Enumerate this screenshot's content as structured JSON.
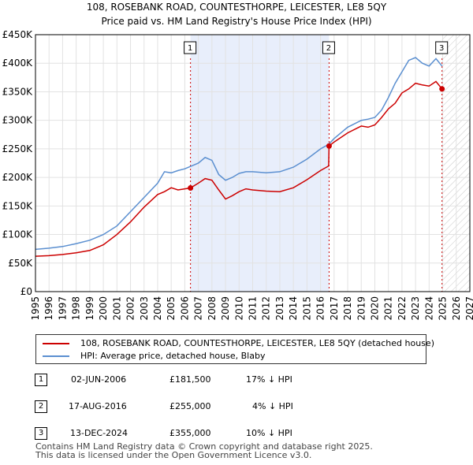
{
  "title": "108, ROSEBANK ROAD, COUNTESTHORPE, LEICESTER, LE8 5QY",
  "subtitle": "Price paid vs. HM Land Registry's House Price Index (HPI)",
  "chart_data": {
    "type": "line",
    "x_range": [
      1995,
      2027
    ],
    "ylim": [
      0,
      450000
    ],
    "x_ticks": [
      "1995",
      "1996",
      "1997",
      "1998",
      "1999",
      "2000",
      "2001",
      "2002",
      "2003",
      "2004",
      "2005",
      "2006",
      "2007",
      "2008",
      "2009",
      "2010",
      "2011",
      "2012",
      "2013",
      "2014",
      "2015",
      "2016",
      "2017",
      "2018",
      "2019",
      "2020",
      "2021",
      "2022",
      "2023",
      "2024",
      "2025",
      "2026",
      "2027"
    ],
    "y_ticks": [
      {
        "value": 0,
        "label": "£0"
      },
      {
        "value": 50000,
        "label": "£50K"
      },
      {
        "value": 100000,
        "label": "£100K"
      },
      {
        "value": 150000,
        "label": "£150K"
      },
      {
        "value": 200000,
        "label": "£200K"
      },
      {
        "value": 250000,
        "label": "£250K"
      },
      {
        "value": 300000,
        "label": "£300K"
      },
      {
        "value": 350000,
        "label": "£350K"
      },
      {
        "value": 400000,
        "label": "£400K"
      },
      {
        "value": 450000,
        "label": "£450K"
      }
    ],
    "shaded_band": {
      "from": 2006.42,
      "to": 2016.63
    },
    "future_hatch_from": 2024.95,
    "series": [
      {
        "name": "108, ROSEBANK ROAD, COUNTESTHORPE, LEICESTER, LE8 5QY (detached house)",
        "color": "#cc0000",
        "x": [
          1995,
          1996,
          1997,
          1998,
          1999,
          2000,
          2001,
          2002,
          2003,
          2004,
          2004.5,
          2005,
          2005.5,
          2006,
          2006.42,
          2007,
          2007.5,
          2008,
          2008.5,
          2009,
          2009.5,
          2010,
          2010.5,
          2011,
          2012,
          2013,
          2014,
          2015,
          2016,
          2016.6,
          2016.63,
          2017,
          2018,
          2019,
          2019.5,
          2020,
          2020.5,
          2021,
          2021.5,
          2022,
          2022.5,
          2023,
          2023.5,
          2024,
          2024.5,
          2024.95
        ],
        "values": [
          62000,
          63000,
          65000,
          68000,
          72000,
          82000,
          100000,
          122000,
          148000,
          170000,
          175000,
          182000,
          178000,
          180000,
          181500,
          190000,
          198000,
          195000,
          178000,
          162000,
          168000,
          175000,
          180000,
          178000,
          176000,
          175000,
          182000,
          196000,
          212000,
          220000,
          255000,
          262000,
          278000,
          290000,
          288000,
          292000,
          305000,
          320000,
          330000,
          348000,
          355000,
          365000,
          362000,
          360000,
          368000,
          355000
        ]
      },
      {
        "name": "HPI: Average price, detached house, Blaby",
        "color": "#5b8fd0",
        "x": [
          1995,
          1996,
          1997,
          1998,
          1999,
          2000,
          2001,
          2002,
          2003,
          2004,
          2004.5,
          2005,
          2005.5,
          2006,
          2007,
          2007.5,
          2008,
          2008.5,
          2009,
          2009.5,
          2010,
          2010.5,
          2011,
          2012,
          2013,
          2014,
          2015,
          2016,
          2016.6,
          2017,
          2018,
          2019,
          2019.5,
          2020,
          2020.5,
          2021,
          2021.5,
          2022,
          2022.5,
          2023,
          2023.5,
          2024,
          2024.5,
          2024.95
        ],
        "values": [
          74000,
          76000,
          79000,
          84000,
          90000,
          100000,
          115000,
          140000,
          165000,
          190000,
          210000,
          208000,
          212000,
          215000,
          225000,
          235000,
          230000,
          205000,
          195000,
          200000,
          207000,
          210000,
          210000,
          208000,
          210000,
          218000,
          232000,
          250000,
          258000,
          268000,
          288000,
          300000,
          302000,
          305000,
          318000,
          340000,
          365000,
          385000,
          405000,
          410000,
          400000,
          395000,
          408000,
          395000
        ]
      }
    ],
    "markers": [
      {
        "label": "1",
        "x": 2006.42,
        "value": 181500
      },
      {
        "label": "2",
        "x": 2016.63,
        "value": 255000
      },
      {
        "label": "3",
        "x": 2024.95,
        "value": 355000
      }
    ]
  },
  "legend": {
    "property_label": "108, ROSEBANK ROAD, COUNTESTHORPE, LEICESTER, LE8 5QY (detached house)",
    "property_color": "#cc0000",
    "hpi_label": "HPI: Average price, detached house, Blaby",
    "hpi_color": "#5b8fd0"
  },
  "transactions": [
    {
      "num": "1",
      "date": "02-JUN-2006",
      "price": "£181,500",
      "hpi": "17% ↓ HPI"
    },
    {
      "num": "2",
      "date": "17-AUG-2016",
      "price": "£255,000",
      "hpi": "4% ↓ HPI"
    },
    {
      "num": "3",
      "date": "13-DEC-2024",
      "price": "£355,000",
      "hpi": "10% ↓ HPI"
    }
  ],
  "footer": {
    "line1": "Contains HM Land Registry data © Crown copyright and database right 2025.",
    "line2": "This data is licensed under the Open Government Licence v3.0."
  }
}
